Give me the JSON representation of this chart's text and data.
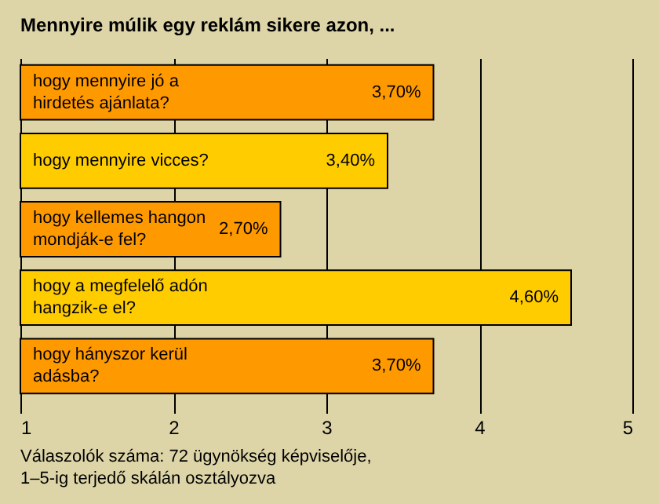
{
  "chart_data": {
    "type": "bar",
    "orientation": "horizontal",
    "title": "Mennyire múlik egy reklám sikere azon, ...",
    "categories": [
      "hogy mennyire jó a hirdetés ajánlata?",
      "hogy mennyire vicces?",
      "hogy kellemes hangon mondják-e fel?",
      "hogy a megfelelő adón hangzik-e el?",
      "hogy hányszor kerül adásba?"
    ],
    "values": [
      3.7,
      3.4,
      2.7,
      4.6,
      3.7
    ],
    "colors": [
      "#ff9900",
      "#ffcc00",
      "#ff9900",
      "#ffcc00",
      "#ff9900"
    ],
    "value_labels": [
      "3,70%",
      "3,40%",
      "2,70%",
      "4,60%",
      "3,70%"
    ],
    "xlim": [
      1,
      5
    ],
    "xticks": [
      1,
      2,
      3,
      4,
      5
    ],
    "grid": "x",
    "annotations": [
      "Válaszolók száma: 72 ügynökség képviselője, 1–5-ig terjedő skálán osztályozva"
    ]
  }
}
